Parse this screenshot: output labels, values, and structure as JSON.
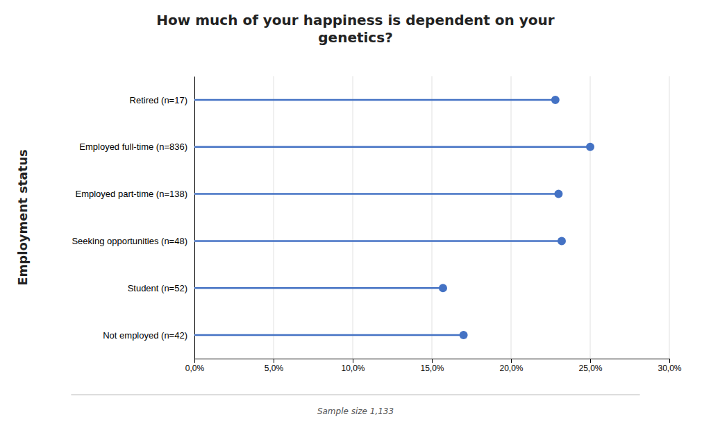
{
  "chart_data": {
    "type": "lollipop",
    "orientation": "horizontal",
    "title": "How much of your happiness is dependent on your\ngenetics?",
    "ylabel": "Employment status",
    "annotation": "Sample size 1,133",
    "categories": [
      "Not employed (n=42)",
      "Student (n=52)",
      "Seeking opportunities (n=48)",
      "Employed part-time (n=138)",
      "Employed full-time (n=836)",
      "Retired (n=17)"
    ],
    "values": [
      0.17,
      0.157,
      0.232,
      0.23,
      0.25,
      0.228
    ],
    "color": "#4472C4",
    "xlim": [
      0.0,
      0.3
    ],
    "xticks": [
      {
        "value": 0.0,
        "label": "0,0%"
      },
      {
        "value": 0.05,
        "label": "5,0%"
      },
      {
        "value": 0.1,
        "label": "10,0%"
      },
      {
        "value": 0.15,
        "label": "15,0%"
      },
      {
        "value": 0.2,
        "label": "20,0%"
      },
      {
        "value": 0.25,
        "label": "25,0%"
      },
      {
        "value": 0.3,
        "label": "30,0%"
      }
    ],
    "grid": true
  }
}
